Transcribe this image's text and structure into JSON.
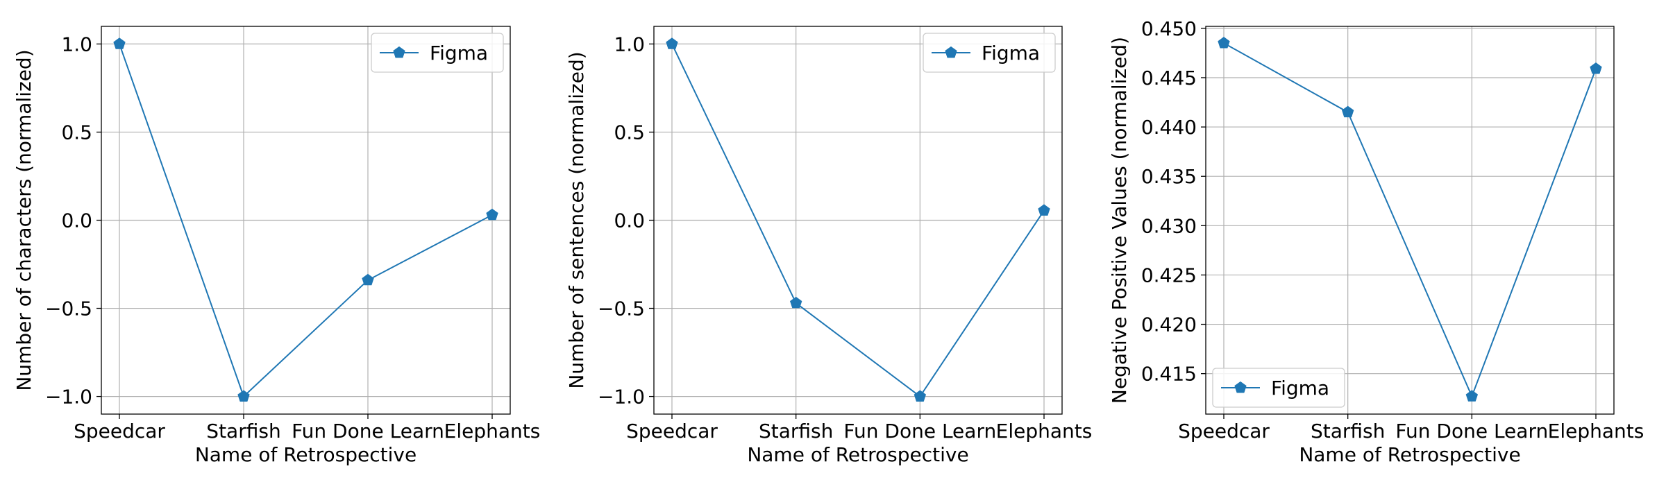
{
  "colors": {
    "series": "#1f77b4",
    "grid": "#b0b0b0",
    "axes": "#000000",
    "legend_frame": "#cccccc",
    "background": "#ffffff"
  },
  "chart_data": [
    {
      "type": "line",
      "marker": "pentagon",
      "grid": true,
      "legend_position": "upper right",
      "categories": [
        "Speedcar",
        "Starfish",
        "Fun Done Learn",
        "Elephants"
      ],
      "xlabel": "Name of Retrospective",
      "ylabel": "Number of characters (normalized)",
      "ylim": [
        -1.1,
        1.1
      ],
      "yticks": [
        1.0,
        0.5,
        0.0,
        -0.5,
        -1.0
      ],
      "ytick_labels": [
        "1.0",
        "0.5",
        "0.0",
        "−0.5",
        "−1.0"
      ],
      "series": [
        {
          "name": "Figma",
          "values": [
            1.0,
            -1.0,
            -0.34,
            0.03
          ]
        }
      ]
    },
    {
      "type": "line",
      "marker": "pentagon",
      "grid": true,
      "legend_position": "upper right",
      "categories": [
        "Speedcar",
        "Starfish",
        "Fun Done Learn",
        "Elephants"
      ],
      "xlabel": "Name of Retrospective",
      "ylabel": "Number of sentences (normalized)",
      "ylim": [
        -1.1,
        1.1
      ],
      "yticks": [
        1.0,
        0.5,
        0.0,
        -0.5,
        -1.0
      ],
      "ytick_labels": [
        "1.0",
        "0.5",
        "0.0",
        "−0.5",
        "−1.0"
      ],
      "series": [
        {
          "name": "Figma",
          "values": [
            1.0,
            -0.47,
            -1.0,
            0.055
          ]
        }
      ]
    },
    {
      "type": "line",
      "marker": "pentagon",
      "grid": true,
      "legend_position": "lower left",
      "categories": [
        "Speedcar",
        "Starfish",
        "Fun Done Learn",
        "Elephants"
      ],
      "xlabel": "Name of Retrospective",
      "ylabel": "Negative Positive Values (normalized)",
      "ylim": [
        0.4109,
        0.4502
      ],
      "yticks": [
        0.45,
        0.445,
        0.44,
        0.435,
        0.43,
        0.425,
        0.42,
        0.415
      ],
      "ytick_labels": [
        "0.450",
        "0.445",
        "0.440",
        "0.435",
        "0.430",
        "0.425",
        "0.420",
        "0.415"
      ],
      "series": [
        {
          "name": "Figma",
          "values": [
            0.4485,
            0.4415,
            0.4127,
            0.4459
          ]
        }
      ]
    }
  ]
}
